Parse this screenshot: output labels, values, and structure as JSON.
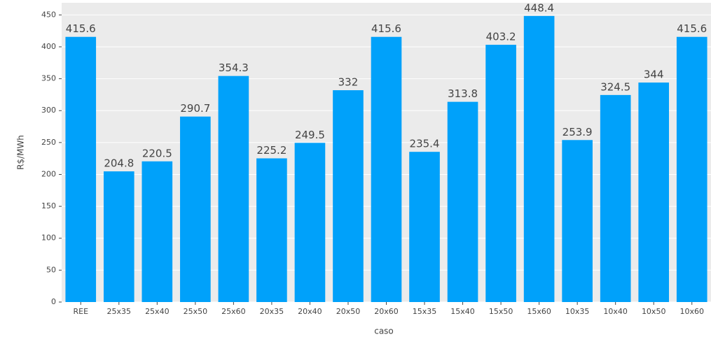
{
  "chart_data": {
    "type": "bar",
    "x_label": "caso",
    "y_label": "R$/MWh",
    "categories": [
      "REE",
      "25x35",
      "25x40",
      "25x50",
      "25x60",
      "20x35",
      "20x40",
      "20x50",
      "20x60",
      "15x35",
      "15x40",
      "15x50",
      "15x60",
      "10x35",
      "10x40",
      "10x50",
      "10x60"
    ],
    "values": [
      415.6,
      204.8,
      220.5,
      290.7,
      354.3,
      225.2,
      249.5,
      332,
      415.6,
      235.4,
      313.8,
      403.2,
      448.4,
      253.9,
      324.5,
      344,
      415.6
    ],
    "color": "#00a1fa",
    "ylim": [
      0,
      469
    ],
    "yticks": [
      0,
      50,
      100,
      150,
      200,
      250,
      300,
      350,
      400,
      450
    ],
    "grid": true
  }
}
